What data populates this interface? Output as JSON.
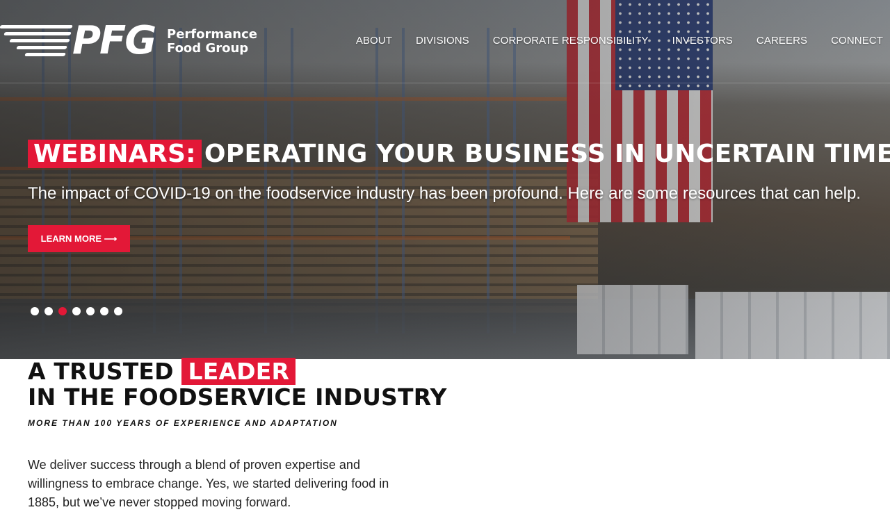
{
  "header": {
    "logo_mark": "PFG",
    "logo_name_line1": "Performance",
    "logo_name_line2": "Food Group",
    "nav": [
      {
        "label": "ABOUT"
      },
      {
        "label": "DIVISIONS"
      },
      {
        "label": "CORPORATE RESPONSIBILITY"
      },
      {
        "label": "INVESTORS"
      },
      {
        "label": "CAREERS"
      },
      {
        "label": "CONNECT"
      }
    ]
  },
  "hero": {
    "headline_highlight": "WEBINARS:",
    "headline_rest": "OPERATING YOUR BUSINESS IN UNCERTAIN TIMES",
    "subheadline": "The impact of COVID-19 on the foodservice industry has been profound. Here are some resources that can help.",
    "cta_label": "LEARN MORE ⟶",
    "slides_total": 7,
    "active_slide_index": 2
  },
  "intro": {
    "title_prefix": "A TRUSTED",
    "title_highlight": "LEADER",
    "title_line2": "IN THE FOODSERVICE INDUSTRY",
    "kicker": "MORE THAN 100 YEARS OF EXPERIENCE AND ADAPTATION",
    "body": "We deliver success through a blend of proven expertise and willingness to embrace change. Yes, we started delivering food in 1885, but we’ve never stopped moving forward."
  },
  "colors": {
    "accent": "#e31837",
    "text_dark": "#111111",
    "white": "#ffffff"
  }
}
